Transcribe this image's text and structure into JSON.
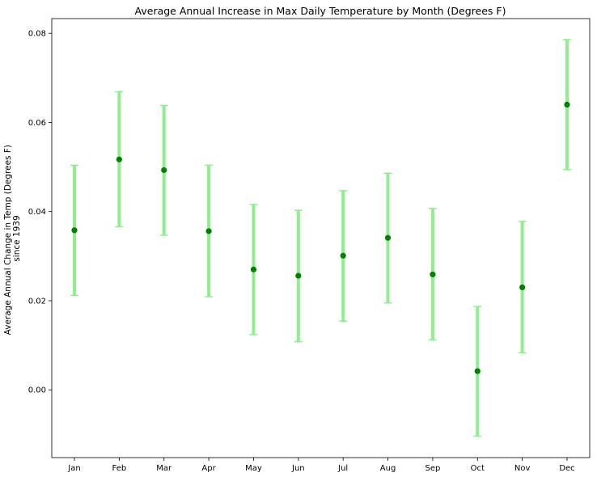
{
  "chart_data": {
    "type": "scatter",
    "title": "Average Annual Increase in Max Daily Temperature by Month (Degrees F)",
    "xlabel": "",
    "ylabel_lines": [
      "Average Annual Change in Temp (Degrees F)",
      "since 1939"
    ],
    "categories": [
      "Jan",
      "Feb",
      "Mar",
      "Apr",
      "May",
      "Jun",
      "Jul",
      "Aug",
      "Sep",
      "Oct",
      "Nov",
      "Dec"
    ],
    "series": [
      {
        "values": [
          0.0358,
          0.0517,
          0.0493,
          0.0356,
          0.027,
          0.0256,
          0.0301,
          0.0341,
          0.0259,
          0.0042,
          0.023,
          0.064
        ],
        "error_lower": [
          0.0212,
          0.0366,
          0.0347,
          0.0209,
          0.0124,
          0.0108,
          0.0154,
          0.0195,
          0.0112,
          -0.0104,
          0.0083,
          0.0494
        ],
        "error_upper": [
          0.0504,
          0.0669,
          0.0638,
          0.0504,
          0.0416,
          0.0403,
          0.0447,
          0.0486,
          0.0407,
          0.0187,
          0.0378,
          0.0786
        ],
        "marker_color": "#008000",
        "error_color": "#90ee90"
      }
    ],
    "yticks": [
      "0.00",
      "0.02",
      "0.04",
      "0.06",
      "0.08"
    ],
    "ytick_values": [
      0.0,
      0.02,
      0.04,
      0.06,
      0.08
    ],
    "ylim": [
      -0.0152,
      0.0833
    ],
    "grid": false
  }
}
